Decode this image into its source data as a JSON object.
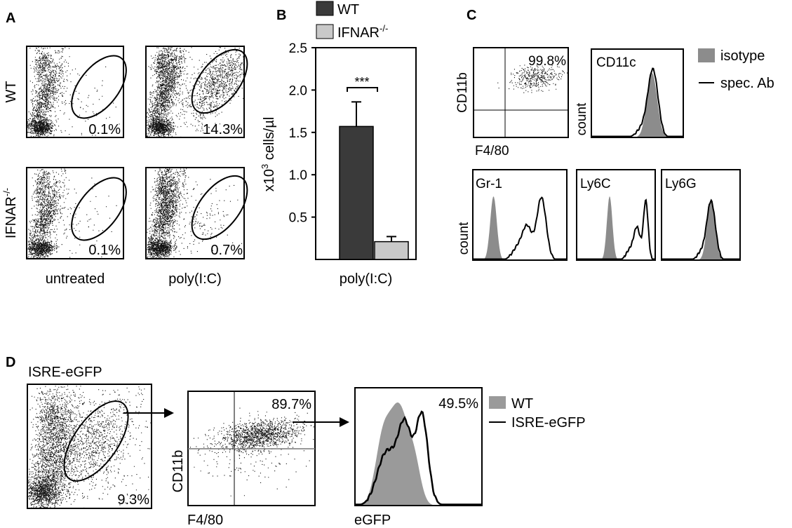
{
  "panel_letters": {
    "a": "A",
    "b": "B",
    "c": "C",
    "d": "D"
  },
  "panel_a": {
    "row_labels": {
      "wt": "WT",
      "ifnar_base": "IFNAR",
      "ifnar_sup": "-/-"
    },
    "col_labels": {
      "untreated": "untreated",
      "polyic": "poly(I:C)"
    },
    "percents": {
      "wt_untreated": "0.1%",
      "wt_polyic": "14.3%",
      "ifnar_untreated": "0.1%",
      "ifnar_polyic": "0.7%"
    }
  },
  "chart_data": {
    "type": "bar",
    "categories": [
      "poly(I:C)"
    ],
    "xlabel": "poly(I:C)",
    "ylabel": "x10³ cells/µl",
    "ylabel_parts": {
      "pre": "x10",
      "sup": "3",
      "post": " cells/µl"
    },
    "ylim": [
      0,
      2.5
    ],
    "yticks": [
      "0.5",
      "1.0",
      "1.5",
      "2.0",
      "2.5"
    ],
    "ytick_values": [
      0.5,
      1.0,
      1.5,
      2.0,
      2.5
    ],
    "series": [
      {
        "name": "WT",
        "legend": {
          "base": "WT",
          "sup": ""
        },
        "values": [
          1.57
        ],
        "error": [
          0.29
        ],
        "color": "#3a3a3a"
      },
      {
        "name": "IFNAR-/-",
        "legend": {
          "base": "IFNAR",
          "sup": "-/-"
        },
        "values": [
          0.21
        ],
        "error": [
          0.06
        ],
        "color": "#c9c9c9"
      }
    ],
    "significance": "***",
    "grid": false
  },
  "panel_c": {
    "dot_xlabel": "F4/80",
    "dot_ylabel": "CD11b",
    "dot_percent": "99.8%",
    "count_label": "count",
    "hist_titles": {
      "cd11c": "CD11c",
      "gr1": "Gr-1",
      "ly6c": "Ly6C",
      "ly6g": "Ly6G"
    },
    "legend": {
      "isotype": "isotype",
      "spec": "spec. Ab"
    },
    "isotype_color": "#8c8c8c"
  },
  "panel_d": {
    "title": "ISRE-eGFP",
    "gate_percent": "9.3%",
    "dot_percent": "89.7%",
    "dot_xlabel": "F4/80",
    "dot_ylabel": "CD11b",
    "hist_percent": "49.5%",
    "hist_xlabel": "eGFP",
    "legend": {
      "wt": "WT",
      "isre": "ISRE-eGFP"
    },
    "wt_color": "#9a9a9a"
  }
}
